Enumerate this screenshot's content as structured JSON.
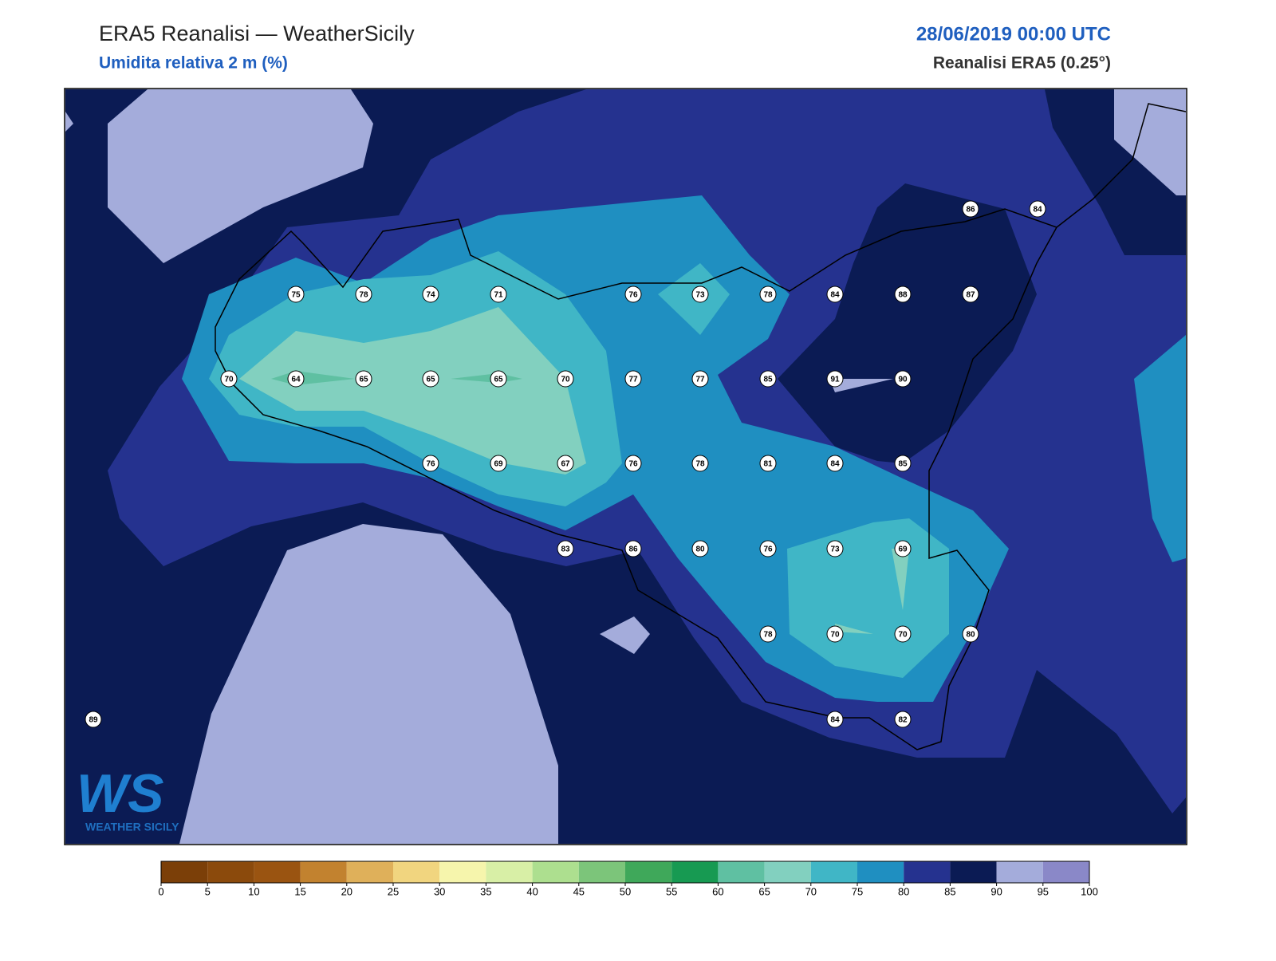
{
  "header": {
    "title": "ERA5 Reanalisi — WeatherSicily",
    "subtitle": "Umidita relativa 2 m (%)",
    "date": "28/06/2019 00:00 UTC",
    "model": "Reanalisi ERA5 (0.25°)"
  },
  "map": {
    "station_values": [
      86,
      84,
      75,
      78,
      74,
      71,
      76,
      73,
      78,
      84,
      88,
      87,
      70,
      64,
      65,
      65,
      65,
      70,
      77,
      77,
      85,
      91,
      90,
      76,
      69,
      67,
      76,
      78,
      81,
      84,
      85,
      83,
      86,
      80,
      76,
      73,
      69,
      78,
      70,
      70,
      80,
      89,
      84,
      82
    ]
  },
  "colorbar": {
    "ticks": [
      0,
      5,
      10,
      15,
      20,
      25,
      30,
      35,
      40,
      45,
      50,
      55,
      60,
      65,
      70,
      75,
      80,
      85,
      90,
      95,
      100
    ],
    "colors": [
      "#7b3f08",
      "#8b4a0c",
      "#9a5411",
      "#c2822f",
      "#dfb05a",
      "#f1d57f",
      "#f6f5ac",
      "#d8efa6",
      "#addf8f",
      "#7cc57a",
      "#3fa85a",
      "#179a52",
      "#5fc0a2",
      "#82d0bf",
      "#40b6c6",
      "#1f8fc1",
      "#25328f",
      "#0b1b54",
      "#a4acdb",
      "#8a88c8"
    ]
  },
  "logo": {
    "mark": "WS",
    "name": "WEATHER SICILY"
  }
}
